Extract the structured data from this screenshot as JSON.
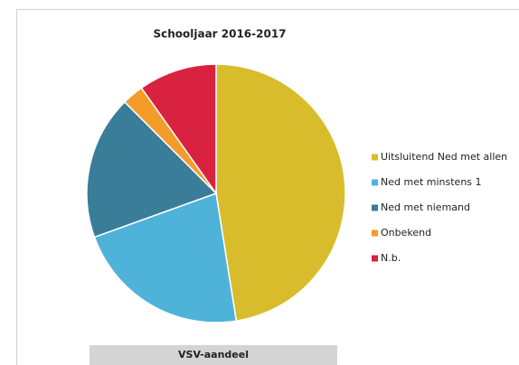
{
  "chart_data": {
    "type": "pie",
    "title": "Schooljaar 2016-2017",
    "categories": [
      "Uitsluitend Ned met allen",
      "Ned met minstens 1",
      "Ned met niemand",
      "Onbekend",
      "N.b."
    ],
    "values": [
      47.5,
      22,
      18,
      2.7,
      9.8
    ],
    "colors": [
      "#d9bc2b",
      "#4fb3d9",
      "#3a7d99",
      "#f39c2a",
      "#d9223f"
    ],
    "legend": "right",
    "footer": "VSV-aandeel"
  }
}
